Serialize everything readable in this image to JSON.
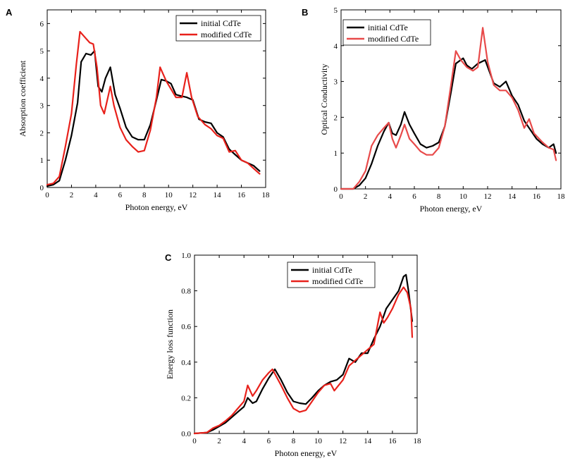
{
  "chart_data": [
    {
      "type": "line",
      "panel_label": "A",
      "xlabel": "Photon energy, eV",
      "ylabel": "Absorption coefficient",
      "xlim": [
        0,
        18
      ],
      "ylim": [
        0,
        6.5
      ],
      "xticks": [
        0,
        2,
        4,
        6,
        8,
        10,
        12,
        14,
        16,
        18
      ],
      "yticks": [
        0,
        1,
        2,
        3,
        4,
        5,
        6
      ],
      "legend_position": "top-right",
      "series": [
        {
          "name": "initial CdTe",
          "color": "#000000",
          "points": [
            [
              0,
              0.05
            ],
            [
              0.5,
              0.1
            ],
            [
              1,
              0.25
            ],
            [
              1.5,
              1.0
            ],
            [
              2,
              1.9
            ],
            [
              2.5,
              3.1
            ],
            [
              2.8,
              4.6
            ],
            [
              3.2,
              4.9
            ],
            [
              3.6,
              4.85
            ],
            [
              3.9,
              5.0
            ],
            [
              4.2,
              3.7
            ],
            [
              4.5,
              3.5
            ],
            [
              4.8,
              4.0
            ],
            [
              5.2,
              4.4
            ],
            [
              5.6,
              3.4
            ],
            [
              6,
              2.9
            ],
            [
              6.5,
              2.2
            ],
            [
              7,
              1.85
            ],
            [
              7.5,
              1.75
            ],
            [
              8,
              1.75
            ],
            [
              8.5,
              2.3
            ],
            [
              9,
              3.2
            ],
            [
              9.4,
              3.95
            ],
            [
              9.8,
              3.9
            ],
            [
              10.2,
              3.8
            ],
            [
              10.6,
              3.4
            ],
            [
              11,
              3.35
            ],
            [
              11.5,
              3.3
            ],
            [
              12,
              3.2
            ],
            [
              12.5,
              2.5
            ],
            [
              13,
              2.4
            ],
            [
              13.5,
              2.35
            ],
            [
              14,
              2.0
            ],
            [
              14.5,
              1.85
            ],
            [
              15,
              1.4
            ],
            [
              15.5,
              1.2
            ],
            [
              16,
              1.0
            ],
            [
              16.5,
              0.9
            ],
            [
              17,
              0.8
            ],
            [
              17.5,
              0.6
            ]
          ]
        },
        {
          "name": "modified CdTe",
          "color": "#e8211b",
          "points": [
            [
              0,
              0.1
            ],
            [
              0.5,
              0.15
            ],
            [
              1,
              0.4
            ],
            [
              1.5,
              1.5
            ],
            [
              2,
              2.7
            ],
            [
              2.4,
              4.5
            ],
            [
              2.7,
              5.7
            ],
            [
              3.1,
              5.5
            ],
            [
              3.5,
              5.3
            ],
            [
              3.8,
              5.25
            ],
            [
              4.1,
              4.4
            ],
            [
              4.4,
              3.0
            ],
            [
              4.7,
              2.7
            ],
            [
              5.2,
              3.7
            ],
            [
              5.5,
              3.0
            ],
            [
              6,
              2.2
            ],
            [
              6.5,
              1.75
            ],
            [
              7,
              1.5
            ],
            [
              7.5,
              1.3
            ],
            [
              8,
              1.35
            ],
            [
              8.5,
              2.1
            ],
            [
              9,
              3.3
            ],
            [
              9.3,
              4.4
            ],
            [
              9.8,
              3.9
            ],
            [
              10.2,
              3.6
            ],
            [
              10.6,
              3.3
            ],
            [
              11.1,
              3.3
            ],
            [
              11.5,
              4.2
            ],
            [
              11.9,
              3.3
            ],
            [
              12.4,
              2.6
            ],
            [
              13,
              2.3
            ],
            [
              13.5,
              2.15
            ],
            [
              14,
              1.9
            ],
            [
              14.5,
              1.8
            ],
            [
              15,
              1.3
            ],
            [
              15.5,
              1.35
            ],
            [
              16,
              1.0
            ],
            [
              16.5,
              0.9
            ],
            [
              17,
              0.7
            ],
            [
              17.5,
              0.5
            ]
          ]
        }
      ]
    },
    {
      "type": "line",
      "panel_label": "B",
      "xlabel": "Photon energy, eV",
      "ylabel": "Optical Conductivity",
      "xlim": [
        0,
        18
      ],
      "ylim": [
        0,
        5
      ],
      "xticks": [
        0,
        2,
        4,
        6,
        8,
        10,
        12,
        14,
        16,
        18
      ],
      "yticks": [
        0,
        1,
        2,
        3,
        4,
        5
      ],
      "legend_position": "top-left",
      "series": [
        {
          "name": "initial CdTe",
          "color": "#000000",
          "points": [
            [
              0,
              0
            ],
            [
              1,
              0
            ],
            [
              1.5,
              0.1
            ],
            [
              2,
              0.3
            ],
            [
              2.5,
              0.7
            ],
            [
              3,
              1.2
            ],
            [
              3.5,
              1.6
            ],
            [
              3.9,
              1.85
            ],
            [
              4.2,
              1.55
            ],
            [
              4.5,
              1.5
            ],
            [
              4.9,
              1.8
            ],
            [
              5.2,
              2.15
            ],
            [
              5.6,
              1.8
            ],
            [
              6,
              1.55
            ],
            [
              6.5,
              1.25
            ],
            [
              7,
              1.15
            ],
            [
              7.5,
              1.2
            ],
            [
              8,
              1.3
            ],
            [
              8.5,
              1.75
            ],
            [
              9,
              2.7
            ],
            [
              9.4,
              3.5
            ],
            [
              10,
              3.65
            ],
            [
              10.3,
              3.45
            ],
            [
              10.7,
              3.35
            ],
            [
              11.2,
              3.5
            ],
            [
              11.8,
              3.6
            ],
            [
              12.5,
              2.95
            ],
            [
              13,
              2.85
            ],
            [
              13.5,
              3.0
            ],
            [
              14,
              2.6
            ],
            [
              14.5,
              2.35
            ],
            [
              15,
              1.9
            ],
            [
              15.5,
              1.65
            ],
            [
              16,
              1.4
            ],
            [
              16.5,
              1.25
            ],
            [
              17,
              1.15
            ],
            [
              17.4,
              1.25
            ],
            [
              17.6,
              1.0
            ]
          ]
        },
        {
          "name": "modified CdTe",
          "color": "#e84a4a",
          "points": [
            [
              0,
              0
            ],
            [
              1,
              0
            ],
            [
              1.5,
              0.2
            ],
            [
              2,
              0.5
            ],
            [
              2.5,
              1.2
            ],
            [
              3,
              1.5
            ],
            [
              3.5,
              1.7
            ],
            [
              3.9,
              1.85
            ],
            [
              4.2,
              1.4
            ],
            [
              4.5,
              1.15
            ],
            [
              4.9,
              1.5
            ],
            [
              5.2,
              1.8
            ],
            [
              5.6,
              1.4
            ],
            [
              6,
              1.25
            ],
            [
              6.5,
              1.05
            ],
            [
              7,
              0.95
            ],
            [
              7.5,
              0.95
            ],
            [
              8,
              1.15
            ],
            [
              8.5,
              1.75
            ],
            [
              9,
              2.9
            ],
            [
              9.4,
              3.85
            ],
            [
              9.8,
              3.6
            ],
            [
              10.3,
              3.4
            ],
            [
              10.8,
              3.3
            ],
            [
              11.2,
              3.4
            ],
            [
              11.6,
              4.5
            ],
            [
              12,
              3.55
            ],
            [
              12.5,
              2.9
            ],
            [
              13,
              2.75
            ],
            [
              13.5,
              2.75
            ],
            [
              14,
              2.55
            ],
            [
              14.5,
              2.2
            ],
            [
              15,
              1.7
            ],
            [
              15.4,
              1.95
            ],
            [
              15.8,
              1.55
            ],
            [
              16.5,
              1.3
            ],
            [
              17,
              1.15
            ],
            [
              17.4,
              1.1
            ],
            [
              17.6,
              0.8
            ]
          ]
        }
      ]
    },
    {
      "type": "line",
      "panel_label": "C",
      "xlabel": "Photon energy, eV",
      "ylabel": "Energy loss function",
      "xlim": [
        0,
        18
      ],
      "ylim": [
        0,
        1.0
      ],
      "xticks": [
        0,
        2,
        4,
        6,
        8,
        10,
        12,
        14,
        16,
        18
      ],
      "yticks": [
        0.0,
        0.2,
        0.4,
        0.6,
        0.8,
        1.0
      ],
      "ytick_labels": [
        "0.0",
        "0.2",
        "0.4",
        "0.6",
        "0.8",
        "1.0"
      ],
      "legend_position": "top-right",
      "series": [
        {
          "name": "initial CdTe",
          "color": "#000000",
          "points": [
            [
              0,
              0
            ],
            [
              1,
              0.005
            ],
            [
              1.5,
              0.02
            ],
            [
              2,
              0.04
            ],
            [
              2.5,
              0.06
            ],
            [
              3,
              0.09
            ],
            [
              3.5,
              0.12
            ],
            [
              4,
              0.15
            ],
            [
              4.3,
              0.2
            ],
            [
              4.7,
              0.17
            ],
            [
              5,
              0.18
            ],
            [
              5.5,
              0.25
            ],
            [
              6,
              0.31
            ],
            [
              6.5,
              0.36
            ],
            [
              7,
              0.3
            ],
            [
              7.5,
              0.23
            ],
            [
              8,
              0.18
            ],
            [
              8.5,
              0.17
            ],
            [
              9,
              0.165
            ],
            [
              9.5,
              0.2
            ],
            [
              10,
              0.24
            ],
            [
              10.5,
              0.27
            ],
            [
              11,
              0.29
            ],
            [
              11.5,
              0.3
            ],
            [
              12,
              0.33
            ],
            [
              12.5,
              0.42
            ],
            [
              13,
              0.4
            ],
            [
              13.5,
              0.45
            ],
            [
              14,
              0.45
            ],
            [
              14.5,
              0.53
            ],
            [
              15,
              0.6
            ],
            [
              15.5,
              0.7
            ],
            [
              16,
              0.75
            ],
            [
              16.5,
              0.8
            ],
            [
              16.9,
              0.88
            ],
            [
              17.1,
              0.89
            ],
            [
              17.3,
              0.8
            ],
            [
              17.6,
              0.63
            ]
          ]
        },
        {
          "name": "modified CdTe",
          "color": "#e8211b",
          "points": [
            [
              0,
              0
            ],
            [
              1,
              0.005
            ],
            [
              1.5,
              0.03
            ],
            [
              2,
              0.045
            ],
            [
              2.5,
              0.07
            ],
            [
              3,
              0.1
            ],
            [
              3.5,
              0.14
            ],
            [
              4,
              0.18
            ],
            [
              4.3,
              0.27
            ],
            [
              4.7,
              0.21
            ],
            [
              5,
              0.24
            ],
            [
              5.5,
              0.3
            ],
            [
              6,
              0.34
            ],
            [
              6.3,
              0.36
            ],
            [
              7,
              0.27
            ],
            [
              7.5,
              0.2
            ],
            [
              8,
              0.14
            ],
            [
              8.5,
              0.12
            ],
            [
              9,
              0.13
            ],
            [
              9.5,
              0.18
            ],
            [
              10,
              0.23
            ],
            [
              10.5,
              0.27
            ],
            [
              11,
              0.28
            ],
            [
              11.3,
              0.24
            ],
            [
              12,
              0.3
            ],
            [
              12.5,
              0.38
            ],
            [
              13,
              0.41
            ],
            [
              13.5,
              0.44
            ],
            [
              14,
              0.47
            ],
            [
              14.5,
              0.5
            ],
            [
              15,
              0.68
            ],
            [
              15.3,
              0.62
            ],
            [
              15.6,
              0.65
            ],
            [
              16,
              0.7
            ],
            [
              16.5,
              0.78
            ],
            [
              16.9,
              0.82
            ],
            [
              17.2,
              0.79
            ],
            [
              17.5,
              0.7
            ],
            [
              17.6,
              0.54
            ]
          ]
        }
      ]
    }
  ]
}
